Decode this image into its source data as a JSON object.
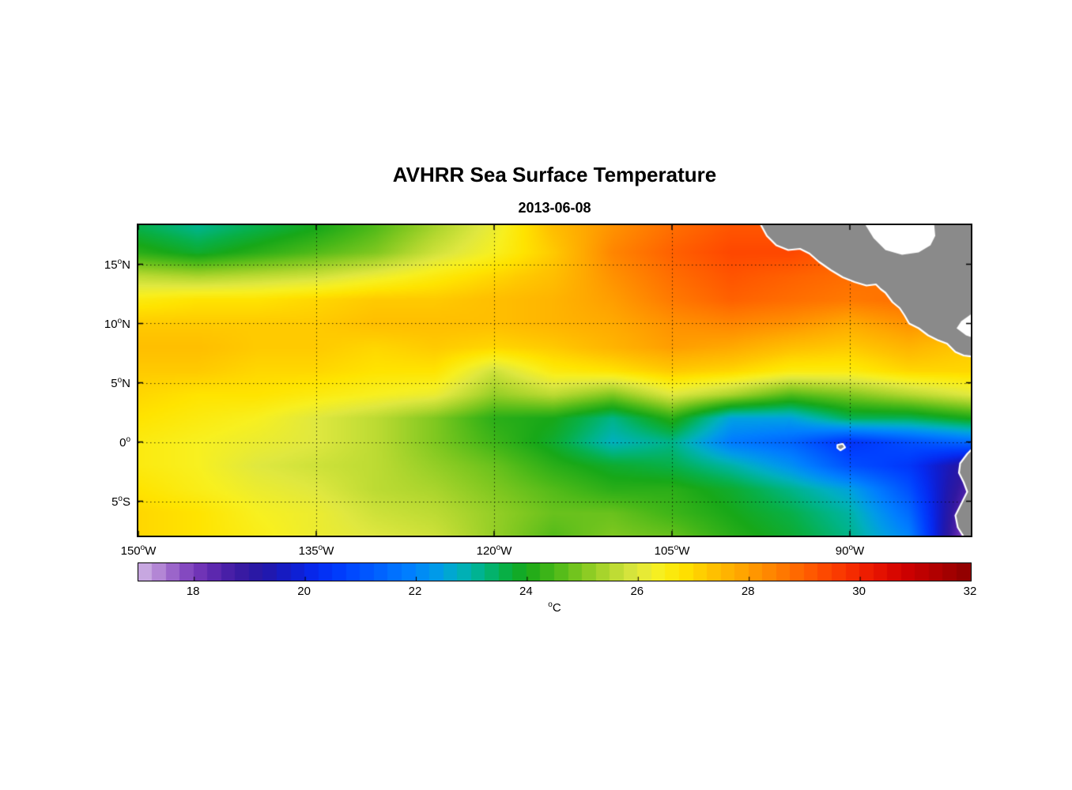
{
  "title": "AVHRR Sea Surface Temperature",
  "date": "2013-06-08",
  "axes": {
    "deg": "o",
    "x_ticks": [
      {
        "num": "150",
        "hem": "W",
        "lon": -150
      },
      {
        "num": "135",
        "hem": "W",
        "lon": -135
      },
      {
        "num": "120",
        "hem": "W",
        "lon": -120
      },
      {
        "num": "105",
        "hem": "W",
        "lon": -105
      },
      {
        "num": "90",
        "hem": "W",
        "lon": -90
      }
    ],
    "y_ticks": [
      {
        "num": "15",
        "hem": "N",
        "lat": 15
      },
      {
        "num": "10",
        "hem": "N",
        "lat": 10
      },
      {
        "num": "5",
        "hem": "N",
        "lat": 5
      },
      {
        "num": "0",
        "hem": "",
        "lat": 0
      },
      {
        "num": "5",
        "hem": "S",
        "lat": -5
      }
    ],
    "grid_lons": [
      -135,
      -120,
      -105,
      -90
    ],
    "grid_lats": [
      15,
      10,
      5,
      0,
      -5
    ],
    "lon_range": [
      -150,
      -79.8
    ],
    "lat_range": [
      -7.9,
      18.3
    ]
  },
  "colorbar": {
    "min": 17,
    "max": 32,
    "ticks": [
      18,
      20,
      22,
      24,
      26,
      28,
      30,
      32
    ],
    "segments": 60,
    "unit_deg": "o",
    "unit_text": "C"
  },
  "colors": {
    "land": "#8a8a8a",
    "coast": "#ffffff",
    "frame": "#000000",
    "grid": "#000000",
    "background": "#ffffff"
  },
  "colormap": [
    [
      17.0,
      "#d2b8e6"
    ],
    [
      17.4,
      "#b183d4"
    ],
    [
      17.8,
      "#8a4fc3"
    ],
    [
      18.2,
      "#6b2fb4"
    ],
    [
      18.6,
      "#4a20a8"
    ],
    [
      19.0,
      "#3018a0"
    ],
    [
      19.4,
      "#2018b0"
    ],
    [
      19.8,
      "#101ed0"
    ],
    [
      20.2,
      "#062af0"
    ],
    [
      20.7,
      "#0040ff"
    ],
    [
      21.3,
      "#0060ff"
    ],
    [
      21.9,
      "#0080ff"
    ],
    [
      22.4,
      "#009ce8"
    ],
    [
      22.8,
      "#00b0c0"
    ],
    [
      23.2,
      "#00b488"
    ],
    [
      23.6,
      "#08b048"
    ],
    [
      24.0,
      "#18a818"
    ],
    [
      24.5,
      "#48b818"
    ],
    [
      25.0,
      "#80c820"
    ],
    [
      25.5,
      "#b4d830"
    ],
    [
      26.0,
      "#e0e840"
    ],
    [
      26.4,
      "#f8f020"
    ],
    [
      26.8,
      "#ffe400"
    ],
    [
      27.3,
      "#ffc400"
    ],
    [
      27.8,
      "#ffaa00"
    ],
    [
      28.3,
      "#ff8c00"
    ],
    [
      28.8,
      "#ff6e00"
    ],
    [
      29.3,
      "#ff4e00"
    ],
    [
      29.8,
      "#f83000"
    ],
    [
      30.3,
      "#e81400"
    ],
    [
      30.8,
      "#d00000"
    ],
    [
      31.4,
      "#b00000"
    ],
    [
      32.0,
      "#8c0000"
    ]
  ],
  "chart_data": {
    "type": "heatmap",
    "title": "AVHRR Sea Surface Temperature",
    "subtitle": "2013-06-08",
    "units": "degC",
    "value_range": [
      17,
      32
    ],
    "lons": [
      -150,
      -145,
      -140,
      -135,
      -130,
      -125,
      -120,
      -115,
      -110,
      -105,
      -100,
      -95,
      -90,
      -85,
      -80
    ],
    "lats": [
      -8,
      -6,
      -4,
      -2,
      0,
      2,
      4,
      6,
      8,
      10,
      12,
      14,
      16,
      18
    ],
    "sst": [
      [
        27.0,
        26.8,
        26.5,
        26.2,
        26.0,
        25.8,
        25.2,
        24.6,
        25.0,
        24.8,
        24.2,
        23.8,
        23.2,
        22.0,
        17.5
      ],
      [
        27.0,
        26.8,
        26.4,
        26.2,
        25.8,
        25.6,
        25.2,
        24.8,
        24.8,
        24.4,
        24.0,
        23.6,
        23.0,
        21.5,
        18.0
      ],
      [
        26.8,
        26.5,
        26.2,
        26.0,
        25.6,
        25.4,
        25.0,
        24.6,
        24.2,
        24.2,
        23.8,
        23.2,
        22.5,
        21.0,
        18.5
      ],
      [
        26.6,
        26.4,
        26.0,
        25.8,
        25.6,
        25.2,
        24.8,
        24.2,
        23.8,
        23.6,
        23.0,
        22.2,
        21.0,
        20.5,
        19.0
      ],
      [
        26.6,
        26.4,
        26.2,
        26.0,
        25.6,
        25.0,
        24.4,
        23.8,
        22.8,
        23.2,
        21.8,
        21.4,
        20.4,
        21.0,
        21.5
      ],
      [
        26.8,
        26.6,
        26.4,
        26.0,
        25.6,
        25.0,
        24.2,
        24.0,
        23.2,
        24.2,
        22.5,
        22.5,
        23.5,
        23.5,
        24.0
      ],
      [
        27.0,
        26.8,
        26.8,
        26.6,
        26.4,
        26.2,
        25.2,
        25.6,
        25.0,
        26.0,
        25.4,
        24.6,
        25.0,
        25.5,
        26.0
      ],
      [
        27.2,
        27.2,
        27.0,
        27.0,
        26.8,
        26.8,
        25.8,
        26.6,
        26.8,
        27.2,
        27.0,
        26.6,
        26.6,
        27.0,
        27.0
      ],
      [
        27.4,
        27.4,
        27.2,
        27.2,
        27.0,
        27.2,
        27.0,
        27.2,
        27.6,
        28.0,
        27.8,
        27.4,
        27.2,
        27.6,
        27.2
      ],
      [
        27.2,
        27.2,
        27.2,
        27.2,
        27.4,
        27.4,
        27.4,
        27.6,
        27.8,
        28.2,
        28.4,
        28.2,
        27.8,
        28.2,
        27.8
      ],
      [
        26.6,
        26.8,
        26.8,
        27.0,
        27.2,
        27.2,
        27.4,
        27.6,
        28.0,
        28.6,
        29.0,
        28.8,
        28.6,
        28.8,
        28.2
      ],
      [
        25.6,
        25.4,
        25.6,
        25.8,
        26.2,
        26.6,
        27.0,
        27.4,
        28.2,
        28.8,
        29.2,
        29.0,
        28.8,
        28.6,
        28.4
      ],
      [
        24.2,
        23.8,
        24.2,
        24.6,
        25.0,
        25.8,
        26.4,
        27.2,
        28.4,
        29.0,
        29.4,
        29.4,
        29.0,
        28.6,
        28.2
      ],
      [
        23.6,
        23.2,
        23.6,
        24.0,
        24.6,
        25.4,
        26.2,
        27.4,
        28.2,
        28.8,
        29.2,
        29.2,
        28.8,
        28.4,
        28.0
      ]
    ]
  },
  "land": {
    "polygons": [
      [
        [
          -97.6,
          18.5
        ],
        [
          -97.0,
          17.4
        ],
        [
          -96.2,
          16.6
        ],
        [
          -95.2,
          16.2
        ],
        [
          -94.2,
          16.3
        ],
        [
          -93.4,
          15.9
        ],
        [
          -92.6,
          15.2
        ],
        [
          -91.6,
          14.5
        ],
        [
          -90.6,
          13.9
        ],
        [
          -89.6,
          13.5
        ],
        [
          -88.6,
          13.2
        ],
        [
          -87.8,
          13.3
        ],
        [
          -87.4,
          12.9
        ],
        [
          -87.0,
          12.6
        ],
        [
          -86.4,
          11.8
        ],
        [
          -85.8,
          11.3
        ],
        [
          -85.4,
          10.7
        ],
        [
          -85.0,
          10.0
        ],
        [
          -84.2,
          9.6
        ],
        [
          -83.4,
          9.0
        ],
        [
          -82.6,
          8.6
        ],
        [
          -81.8,
          8.3
        ],
        [
          -81.1,
          7.6
        ],
        [
          -80.4,
          7.3
        ],
        [
          -79.6,
          7.2
        ],
        [
          -79.6,
          18.5
        ]
      ],
      [
        [
          -79.6,
          -0.5
        ],
        [
          -80.1,
          -1.0
        ],
        [
          -80.7,
          -1.8
        ],
        [
          -80.8,
          -2.6
        ],
        [
          -80.4,
          -3.4
        ],
        [
          -80.1,
          -4.2
        ],
        [
          -80.6,
          -5.2
        ],
        [
          -81.1,
          -6.2
        ],
        [
          -80.9,
          -7.2
        ],
        [
          -80.4,
          -8.0
        ],
        [
          -79.6,
          -8.0
        ]
      ],
      [
        [
          -91.05,
          -0.25
        ],
        [
          -90.6,
          -0.15
        ],
        [
          -90.4,
          -0.45
        ],
        [
          -90.8,
          -0.7
        ],
        [
          -91.05,
          -0.5
        ]
      ]
    ],
    "cutouts": [
      [
        [
          -88.8,
          18.5
        ],
        [
          -88.0,
          17.2
        ],
        [
          -87.0,
          16.2
        ],
        [
          -85.6,
          15.8
        ],
        [
          -84.2,
          16.0
        ],
        [
          -83.2,
          16.6
        ],
        [
          -82.8,
          17.4
        ],
        [
          -82.9,
          18.5
        ]
      ],
      [
        [
          -79.6,
          10.9
        ],
        [
          -80.6,
          10.2
        ],
        [
          -81.0,
          9.6
        ],
        [
          -80.2,
          9.0
        ],
        [
          -79.6,
          8.8
        ]
      ]
    ]
  }
}
